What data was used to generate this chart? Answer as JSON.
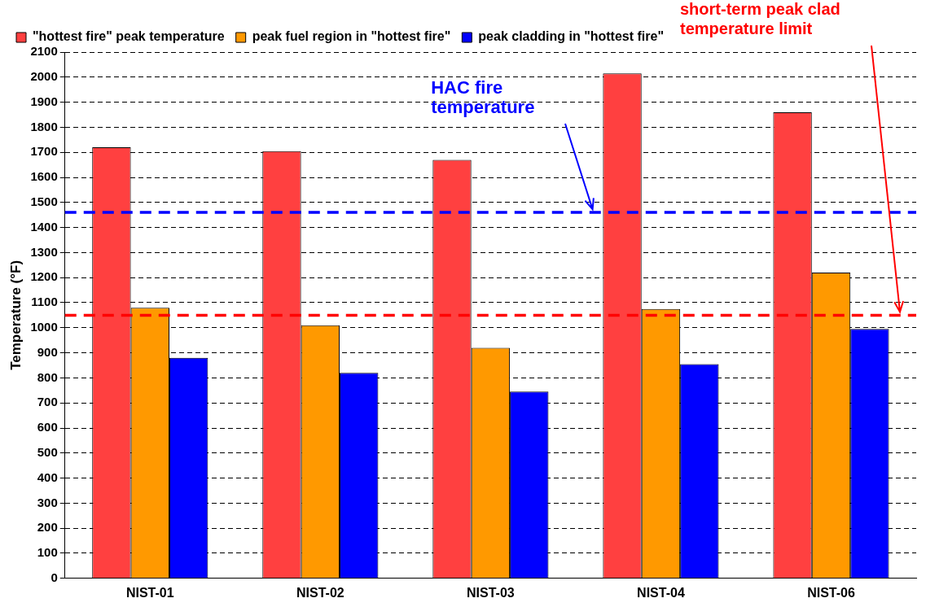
{
  "chart_data": {
    "type": "bar",
    "ylabel": "Temperature (°F)",
    "categories": [
      "NIST-01",
      "NIST-02",
      "NIST-03",
      "NIST-04",
      "NIST-06"
    ],
    "series": [
      {
        "name": "\"hottest fire\" peak temperature",
        "color": "#ff4040",
        "values": [
          1720,
          1705,
          1670,
          2015,
          1860
        ]
      },
      {
        "name": "peak fuel region in \"hottest fire\"",
        "color": "#ff9900",
        "values": [
          1080,
          1010,
          920,
          1075,
          1220
        ]
      },
      {
        "name": "peak cladding in \"hottest fire\"",
        "color": "#0000ff",
        "values": [
          880,
          820,
          745,
          855,
          995
        ]
      }
    ],
    "ylim": [
      0,
      2100
    ],
    "yticks": [
      0,
      100,
      200,
      300,
      400,
      500,
      600,
      700,
      800,
      900,
      1000,
      1100,
      1200,
      1300,
      1400,
      1500,
      1600,
      1700,
      1800,
      1900,
      2000,
      2100
    ],
    "grid": "y",
    "legend": "top left",
    "ref_lines": [
      {
        "axis": "y",
        "value": 1460,
        "label": "HAC fire temperature",
        "color": "#0000ff",
        "line_style": "dashed"
      },
      {
        "axis": "y",
        "value": 1050,
        "label": "short-term peak clad temperature limit",
        "color": "#ff0000",
        "line_style": "dashed"
      }
    ]
  }
}
